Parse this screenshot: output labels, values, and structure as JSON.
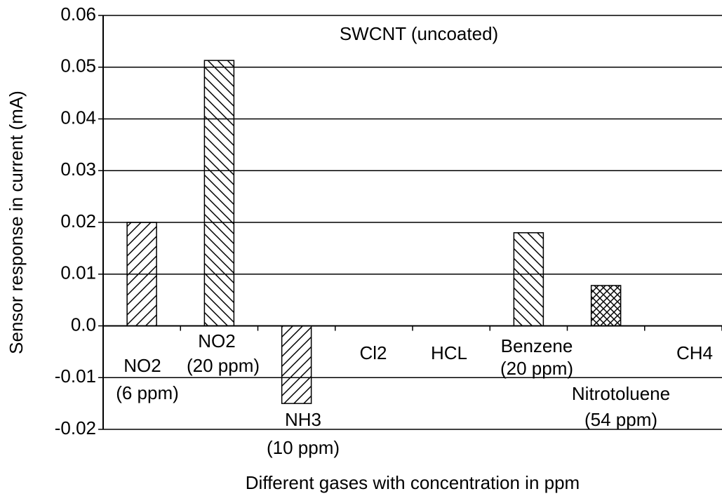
{
  "chart_data": {
    "type": "bar",
    "title": "SWCNT (uncoated)",
    "x_label": "Different gases with concentration in ppm",
    "y_label": "Sensor response in current (mA)",
    "categories": [
      [
        "NO2",
        "(6 ppm)"
      ],
      [
        "NO2",
        "(20 ppm)"
      ],
      [
        "NH3",
        "(10 ppm)"
      ],
      [
        "Cl2"
      ],
      [
        "HCL"
      ],
      [
        "Benzene",
        "(20 ppm)"
      ],
      [
        "Nitrotoluene",
        "(54 ppm)"
      ],
      [
        "CH4"
      ]
    ],
    "values": [
      0.02,
      0.0513,
      -0.015,
      0,
      0,
      0.018,
      0.0078,
      0
    ],
    "hatches": [
      "/",
      "\\",
      "/",
      "/",
      "/",
      "\\",
      "x",
      "/"
    ],
    "color": "#000000",
    "ylim": [
      -0.02,
      0.06
    ],
    "yticks": [
      -0.02,
      -0.01,
      {
        "value": 0,
        "label": "0.0"
      },
      0.01,
      0.02,
      0.03,
      0.04,
      0.05,
      0.06
    ],
    "grid": true
  }
}
